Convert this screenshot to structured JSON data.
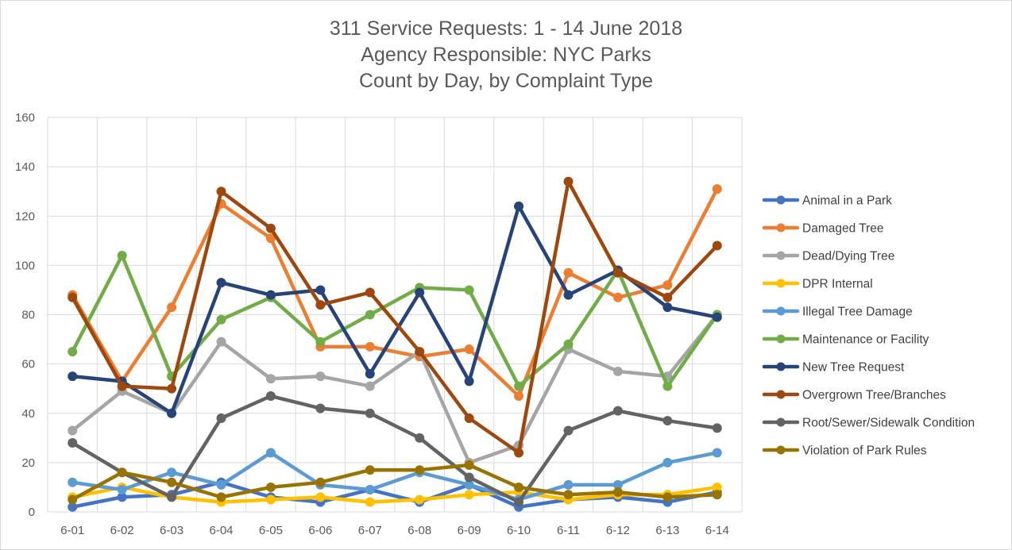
{
  "chart_data": {
    "type": "line",
    "title_lines": [
      "311 Service Requests: 1 - 14 June 2018",
      "Agency Responsible: NYC Parks",
      "Count by Day, by Complaint Type"
    ],
    "categories": [
      "6-01",
      "6-02",
      "6-03",
      "6-04",
      "6-05",
      "6-06",
      "6-07",
      "6-08",
      "6-09",
      "6-10",
      "6-11",
      "6-12",
      "6-13",
      "6-14"
    ],
    "ylim": [
      0,
      160
    ],
    "yticks": [
      0,
      20,
      40,
      60,
      80,
      100,
      120,
      140,
      160
    ],
    "grid": true,
    "legend_position": "right",
    "series": [
      {
        "name": "Animal in a Park",
        "color": "#4472c4",
        "values": [
          2,
          6,
          7,
          12,
          6,
          4,
          9,
          4,
          11,
          2,
          5,
          6,
          4,
          8
        ]
      },
      {
        "name": "Damaged Tree",
        "color": "#ed7d31",
        "values": [
          88,
          53,
          83,
          125,
          111,
          67,
          67,
          63,
          66,
          47,
          97,
          87,
          92,
          131
        ]
      },
      {
        "name": "Dead/Dying Tree",
        "color": "#a5a5a5",
        "values": [
          33,
          49,
          40,
          69,
          54,
          55,
          51,
          65,
          20,
          27,
          66,
          57,
          55,
          80
        ]
      },
      {
        "name": "DPR Internal",
        "color": "#ffc000",
        "values": [
          6,
          10,
          6,
          4,
          5,
          6,
          4,
          5,
          7,
          8,
          5,
          7,
          7,
          10
        ]
      },
      {
        "name": "Illegal Tree Damage",
        "color": "#5b9bd5",
        "values": [
          12,
          9,
          16,
          11,
          24,
          11,
          9,
          16,
          11,
          5,
          11,
          11,
          20,
          24
        ]
      },
      {
        "name": "Maintenance or Facility",
        "color": "#70ad47",
        "values": [
          65,
          104,
          55,
          78,
          87,
          69,
          80,
          91,
          90,
          51,
          68,
          98,
          51,
          80
        ]
      },
      {
        "name": "New Tree Request",
        "color": "#264478",
        "values": [
          55,
          53,
          40,
          93,
          88,
          90,
          56,
          89,
          53,
          124,
          88,
          98,
          83,
          79
        ]
      },
      {
        "name": "Overgrown Tree/Branches",
        "color": "#9e480e",
        "values": [
          87,
          51,
          50,
          130,
          115,
          84,
          89,
          65,
          38,
          24,
          134,
          97,
          87,
          108
        ]
      },
      {
        "name": "Root/Sewer/Sidewalk Condition",
        "color": "#636363",
        "values": [
          28,
          16,
          6,
          38,
          47,
          42,
          40,
          30,
          14,
          4,
          33,
          41,
          37,
          34
        ]
      },
      {
        "name": "Violation of Park Rules",
        "color": "#997300",
        "values": [
          5,
          16,
          12,
          6,
          10,
          12,
          17,
          17,
          19,
          10,
          7,
          8,
          6,
          7
        ]
      }
    ]
  }
}
